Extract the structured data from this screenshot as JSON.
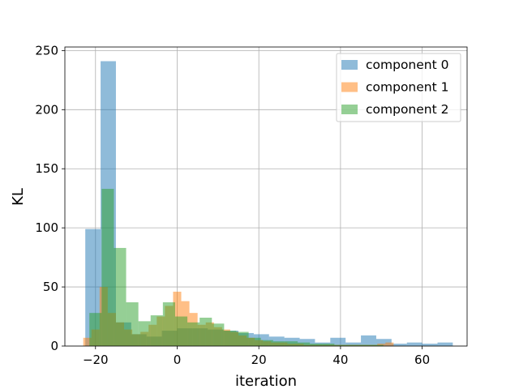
{
  "chart_data": {
    "type": "bar",
    "subtype": "overlapping-histogram",
    "xlabel": "iteration",
    "ylabel": "KL",
    "xlim": [
      -27.5,
      71
    ],
    "ylim": [
      0,
      253
    ],
    "xticks": [
      -20,
      0,
      20,
      40,
      60
    ],
    "yticks": [
      0,
      50,
      100,
      150,
      200,
      250
    ],
    "grid": true,
    "legend_position": "top-right",
    "bar_alpha": 0.5,
    "series": [
      {
        "name": "component 0",
        "color": "#1f77b4",
        "bin_edges": [
          -22.5,
          -18.75,
          -15,
          -11.25,
          -7.5,
          -3.75,
          0,
          3.75,
          7.5,
          11.25,
          15,
          18.75,
          22.5,
          26.25,
          30,
          33.75,
          37.5,
          41.25,
          45,
          48.75,
          52.5,
          56.25,
          60,
          63.75,
          67.5
        ],
        "counts": [
          99,
          241,
          20,
          10,
          8,
          13,
          15,
          15,
          14,
          13,
          11,
          10,
          8,
          7,
          6,
          3,
          7,
          3,
          9,
          6,
          2,
          3,
          2,
          3
        ]
      },
      {
        "name": "component 1",
        "color": "#ff7f0e",
        "bin_edges": [
          -23,
          -21,
          -19,
          -17,
          -15,
          -13,
          -11,
          -9,
          -7,
          -5,
          -3,
          -1,
          1,
          3,
          5,
          7,
          9,
          11,
          13,
          15,
          17,
          19,
          21,
          23,
          25,
          27,
          29,
          31,
          33,
          35,
          37,
          39,
          41,
          43,
          45,
          47,
          49,
          51,
          53
        ],
        "counts": [
          7,
          14,
          50,
          28,
          20,
          14,
          10,
          12,
          18,
          25,
          34,
          46,
          38,
          28,
          18,
          20,
          16,
          14,
          12,
          9,
          7,
          5,
          4,
          3,
          3,
          2,
          2,
          1,
          1,
          1,
          1,
          1,
          1,
          1,
          1,
          1,
          2,
          3
        ]
      },
      {
        "name": "component 2",
        "color": "#2ca02c",
        "bin_edges": [
          -21.5,
          -18.5,
          -15.5,
          -12.5,
          -9.5,
          -6.5,
          -3.5,
          -0.5,
          2.5,
          5.5,
          8.5,
          11.5,
          14.5,
          17.5,
          20.5,
          23.5,
          26.5,
          29.5,
          32.5,
          35.5,
          38.5,
          41.5,
          44.5,
          47.5,
          50.5
        ],
        "counts": [
          28,
          133,
          83,
          37,
          21,
          26,
          37,
          25,
          20,
          24,
          19,
          13,
          12,
          7,
          5,
          4,
          4,
          3,
          2,
          2,
          1,
          1,
          1,
          1
        ]
      }
    ]
  }
}
